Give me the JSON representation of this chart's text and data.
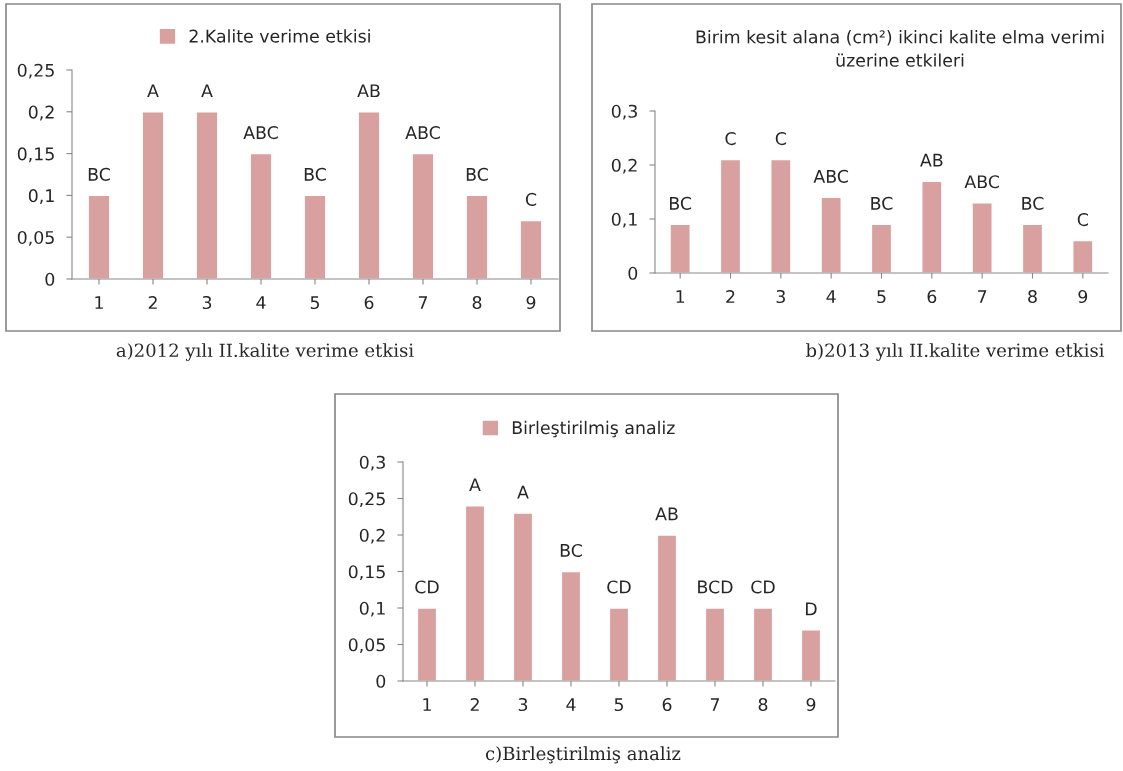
{
  "chart_data": [
    {
      "type": "bar",
      "categories": [
        "1",
        "2",
        "3",
        "4",
        "5",
        "6",
        "7",
        "8",
        "9"
      ],
      "series": [
        {
          "name": "2.Kalite verime etkisi",
          "color": "#d9a0a0",
          "values": [
            0.1,
            0.2,
            0.2,
            0.15,
            0.1,
            0.2,
            0.15,
            0.1,
            0.07
          ],
          "value_labels": [
            "BC",
            "A",
            "A",
            "ABC",
            "BC",
            "AB",
            "ABC",
            "BC",
            "C"
          ]
        }
      ],
      "ylim": [
        0,
        0.25
      ],
      "yticks": [
        {
          "value": 0,
          "label": "0"
        },
        {
          "value": 0.05,
          "label": "0,05"
        },
        {
          "value": 0.1,
          "label": "0,1"
        },
        {
          "value": 0.15,
          "label": "0,15"
        },
        {
          "value": 0.2,
          "label": "0,2"
        },
        {
          "value": 0.25,
          "label": "0,25"
        }
      ],
      "legend": "top",
      "grid": false,
      "annotations": [
        "a)2012 yılı II.kalite verime etkisi"
      ]
    },
    {
      "type": "bar",
      "title": "Birim kesit alana (cm²) ikinci kalite elma verimi üzerine etkileri",
      "categories": [
        "1",
        "2",
        "3",
        "4",
        "5",
        "6",
        "7",
        "8",
        "9"
      ],
      "series": [
        {
          "color": "#d9a0a0",
          "values": [
            0.09,
            0.21,
            0.21,
            0.14,
            0.09,
            0.17,
            0.13,
            0.09,
            0.06
          ],
          "value_labels": [
            "BC",
            "C",
            "C",
            "ABC",
            "BC",
            "AB",
            "ABC",
            "BC",
            "C"
          ]
        }
      ],
      "ylim": [
        0,
        0.3
      ],
      "yticks": [
        {
          "value": 0,
          "label": "0"
        },
        {
          "value": 0.1,
          "label": "0,1"
        },
        {
          "value": 0.2,
          "label": "0,2"
        },
        {
          "value": 0.3,
          "label": "0,3"
        }
      ],
      "grid": false,
      "annotations": [
        "b)2013 yılı II.kalite verime etkisi"
      ]
    },
    {
      "type": "bar",
      "categories": [
        "1",
        "2",
        "3",
        "4",
        "5",
        "6",
        "7",
        "8",
        "9"
      ],
      "series": [
        {
          "name": "Birleştirilmiş analiz",
          "color": "#d9a0a0",
          "values": [
            0.1,
            0.24,
            0.23,
            0.15,
            0.1,
            0.2,
            0.1,
            0.1,
            0.07
          ],
          "value_labels": [
            "CD",
            "A",
            "A",
            "BC",
            "CD",
            "AB",
            "BCD",
            "CD",
            "D"
          ]
        }
      ],
      "ylim": [
        0,
        0.3
      ],
      "yticks": [
        {
          "value": 0,
          "label": "0"
        },
        {
          "value": 0.05,
          "label": "0,05"
        },
        {
          "value": 0.1,
          "label": "0,1"
        },
        {
          "value": 0.15,
          "label": "0,15"
        },
        {
          "value": 0.2,
          "label": "0,2"
        },
        {
          "value": 0.25,
          "label": "0,25"
        },
        {
          "value": 0.3,
          "label": "0,3"
        }
      ],
      "legend": "top",
      "grid": false,
      "annotations": [
        "c)Birleştirilmiş analiz"
      ]
    }
  ]
}
